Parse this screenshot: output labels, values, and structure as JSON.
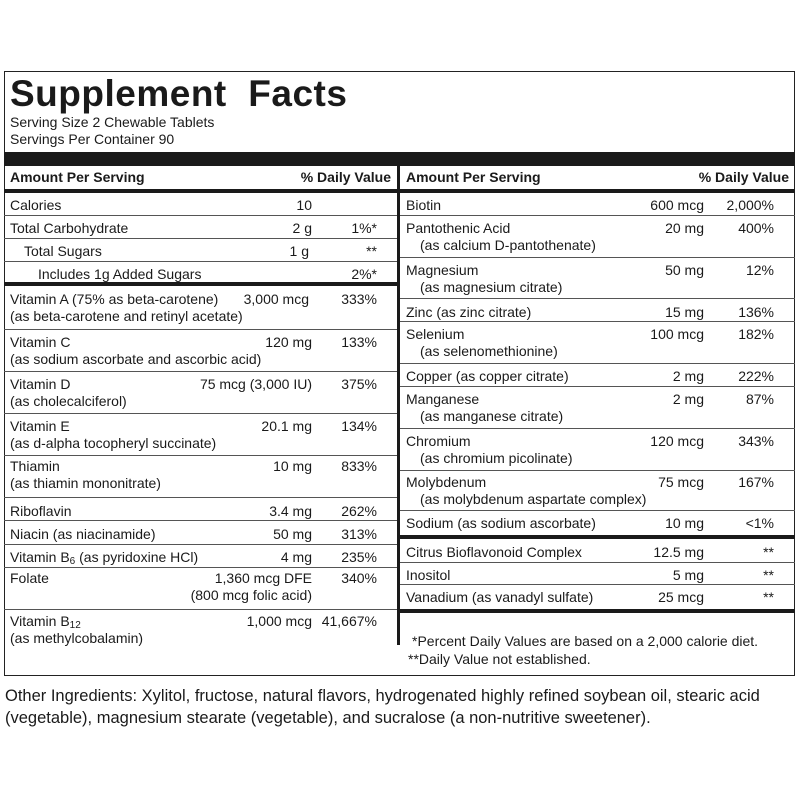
{
  "title": "Supplement  Facts",
  "serving_size": "Serving Size 2 Chewable Tablets",
  "servings_per_container": "Servings Per Container 90",
  "header": {
    "amount": "Amount Per Serving",
    "dv": "% Daily Value"
  },
  "left": [
    {
      "n1": "Calories",
      "amt": "10",
      "dv": ""
    },
    {
      "n1": "Total Carbohydrate",
      "amt": "2 g",
      "dv": "1%*"
    },
    {
      "n1": "Total Sugars",
      "amt": "1 g",
      "dv": "**"
    },
    {
      "n1": "Includes 1g Added Sugars",
      "amt": "",
      "dv": "2%*"
    },
    {
      "n1": "Vitamin A (75% as beta-carotene)",
      "n2": "(as beta-carotene and retinyl acetate)",
      "amt": "3,000 mcg",
      "dv": "333%"
    },
    {
      "n1": "Vitamin C",
      "n2": "(as sodium ascorbate and ascorbic acid)",
      "amt": "120 mg",
      "dv": "133%"
    },
    {
      "n1": "Vitamin D",
      "n2": "(as cholecalciferol)",
      "amt": "75 mcg (3,000 IU)",
      "dv": "375%"
    },
    {
      "n1": "Vitamin E",
      "n2": "(as d-alpha tocopheryl succinate)",
      "amt": "20.1 mg",
      "dv": "134%"
    },
    {
      "n1": "Thiamin",
      "n2": "(as thiamin mononitrate)",
      "amt": "10 mg",
      "dv": "833%"
    },
    {
      "n1": "Riboflavin",
      "amt": "3.4 mg",
      "dv": "262%"
    },
    {
      "n1": "Niacin (as niacinamide)",
      "amt": "50 mg",
      "dv": "313%"
    },
    {
      "n1a": "Vitamin B",
      "n1s": "6",
      "n1b": " (as pyridoxine HCl)",
      "amt": "4 mg",
      "dv": "235%"
    },
    {
      "n1": "Folate",
      "amt": "1,360 mcg DFE",
      "amt2": "(800 mcg folic acid)",
      "dv": "340%"
    },
    {
      "n1a": "Vitamin B",
      "n1s": "12",
      "n2": "(as methylcobalamin)",
      "amt": "1,000 mcg",
      "dv": "41,667%"
    }
  ],
  "right": [
    {
      "n1": "Biotin",
      "amt": "600 mcg",
      "dv": "2,000%"
    },
    {
      "n1": "Pantothenic Acid",
      "n2": "(as calcium D-pantothenate)",
      "amt": "20 mg",
      "dv": "400%"
    },
    {
      "n1": "Magnesium",
      "n2": "(as magnesium citrate)",
      "amt": "50 mg",
      "dv": "12%"
    },
    {
      "n1": "Zinc (as zinc citrate)",
      "amt": "15 mg",
      "dv": "136%"
    },
    {
      "n1": "Selenium",
      "n2": "(as selenomethionine)",
      "amt": "100 mcg",
      "dv": "182%"
    },
    {
      "n1": "Copper (as copper citrate)",
      "amt": "2 mg",
      "dv": "222%"
    },
    {
      "n1": "Manganese",
      "n2": "(as manganese citrate)",
      "amt": "2 mg",
      "dv": "87%"
    },
    {
      "n1": "Chromium",
      "n2": "(as chromium picolinate)",
      "amt": "120 mcg",
      "dv": "343%"
    },
    {
      "n1": "Molybdenum",
      "n2": "(as molybdenum aspartate complex)",
      "amt": "75 mcg",
      "dv": "167%"
    },
    {
      "n1": "Sodium (as sodium ascorbate)",
      "amt": "10 mg",
      "dv": "<1%"
    },
    {
      "n1": "Citrus Bioflavonoid Complex",
      "amt": "12.5 mg",
      "dv": "**"
    },
    {
      "n1": "Inositol",
      "amt": "5 mg",
      "dv": "**"
    },
    {
      "n1": "Vanadium (as vanadyl sulfate)",
      "amt": "25 mcg",
      "dv": "**"
    }
  ],
  "footnotes": [
    "*Percent Daily Values are based on a 2,000 calorie diet.",
    "**Daily Value not established."
  ],
  "other_ingredients": "Other Ingredients: Xylitol, fructose, natural flavors, hydrogenated highly refined soybean oil, stearic acid (vegetable), magnesium stearate (vegetable), and sucralose (a non-nutritive sweetener)."
}
